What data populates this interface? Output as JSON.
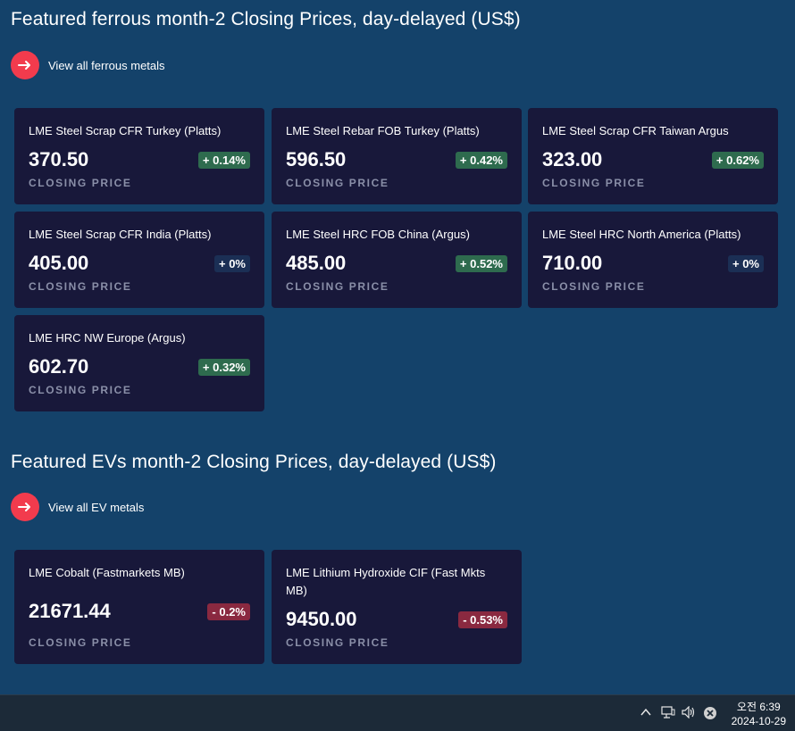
{
  "ferrous": {
    "title": "Featured ferrous month-2 Closing Prices, day-delayed (US$)",
    "view_all": "View all ferrous metals",
    "cards": [
      {
        "name": "LME Steel Scrap CFR Turkey (Platts)",
        "price": "370.50",
        "change": "+ 0.14%",
        "caption": "CLOSING PRICE",
        "trend": "up"
      },
      {
        "name": "LME Steel Rebar FOB Turkey (Platts)",
        "price": "596.50",
        "change": "+ 0.42%",
        "caption": "CLOSING PRICE",
        "trend": "up"
      },
      {
        "name": "LME Steel Scrap CFR Taiwan Argus",
        "price": "323.00",
        "change": "+ 0.62%",
        "caption": "CLOSING PRICE",
        "trend": "up"
      },
      {
        "name": "LME Steel Scrap CFR India (Platts)",
        "price": "405.00",
        "change": "+ 0%",
        "caption": "CLOSING PRICE",
        "trend": "flat"
      },
      {
        "name": "LME Steel HRC FOB China (Argus)",
        "price": "485.00",
        "change": "+ 0.52%",
        "caption": "CLOSING PRICE",
        "trend": "up"
      },
      {
        "name": "LME Steel HRC North America (Platts)",
        "price": "710.00",
        "change": "+ 0%",
        "caption": "CLOSING PRICE",
        "trend": "flat"
      },
      {
        "name": "LME HRC NW Europe (Argus)",
        "price": "602.70",
        "change": "+ 0.32%",
        "caption": "CLOSING PRICE",
        "trend": "up"
      }
    ]
  },
  "ev": {
    "title": "Featured EVs month-2 Closing Prices, day-delayed (US$)",
    "view_all": "View all EV metals",
    "cards": [
      {
        "name": "LME Cobalt (Fastmarkets MB)",
        "price": "21671.44",
        "change": "- 0.2%",
        "caption": "CLOSING PRICE",
        "trend": "down"
      },
      {
        "name": "LME Lithium Hydroxide CIF (Fast Mkts MB)",
        "price": "9450.00",
        "change": "- 0.53%",
        "caption": "CLOSING PRICE",
        "trend": "down"
      }
    ]
  },
  "taskbar": {
    "time": "오전 6:39",
    "date": "2024-10-29",
    "icons": [
      "chevron-up-icon",
      "network-icon",
      "volume-icon",
      "close-circle-icon"
    ]
  },
  "colors": {
    "background": "#14426a",
    "card": "#18183a",
    "accent": "#f23b4d",
    "badge_up": "#2e6b4e",
    "badge_flat": "#1b2f55",
    "badge_down": "#8a2940"
  }
}
